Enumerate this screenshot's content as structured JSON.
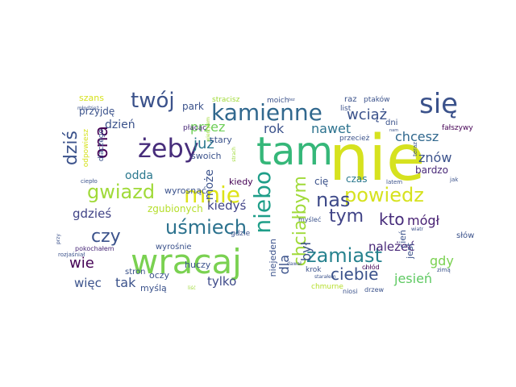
{
  "words": [
    {
      "text": "nie",
      "color": "#d6e21f"
    },
    {
      "text": "tam",
      "color": "#35b779"
    },
    {
      "text": "wracaj",
      "color": "#7ad151"
    },
    {
      "text": "się",
      "color": "#3b528b"
    },
    {
      "text": "żeby",
      "color": "#472d7b"
    },
    {
      "text": "kamienne",
      "color": "#31688e"
    },
    {
      "text": "twój",
      "color": "#3b528b"
    },
    {
      "text": "gwiazd",
      "color": "#a0da39"
    },
    {
      "text": "mnie",
      "color": "#dde318"
    },
    {
      "text": "niebo",
      "color": "#1f9e89"
    },
    {
      "text": "powiedz",
      "color": "#d6e21f"
    },
    {
      "text": "nas",
      "color": "#3e4a89"
    },
    {
      "text": "uśmiech",
      "color": "#2c728e"
    },
    {
      "text": "czy",
      "color": "#3b528b"
    },
    {
      "text": "zamiast",
      "color": "#26828e"
    },
    {
      "text": "ona",
      "color": "#440154"
    },
    {
      "text": "dziś",
      "color": "#3b528b"
    },
    {
      "text": "tym",
      "color": "#414487"
    },
    {
      "text": "kto",
      "color": "#472d7b"
    },
    {
      "text": "chciałbym",
      "color": "#a0da39"
    },
    {
      "text": "ciebie",
      "color": "#3b528b"
    },
    {
      "text": "już",
      "color": "#2a788e"
    },
    {
      "text": "przez",
      "color": "#6ece58"
    },
    {
      "text": "wie",
      "color": "#440154"
    },
    {
      "text": "mógł",
      "color": "#482173"
    },
    {
      "text": "gdy",
      "color": "#7ad151"
    },
    {
      "text": "jesień",
      "color": "#5ec962"
    },
    {
      "text": "dla",
      "color": "#3b528b"
    },
    {
      "text": "był",
      "color": "#3b528b"
    },
    {
      "text": "wciąż",
      "color": "#3b528b"
    },
    {
      "text": "nawet",
      "color": "#2c728e"
    },
    {
      "text": "rok",
      "color": "#3b528b"
    },
    {
      "text": "znów",
      "color": "#3b528b"
    },
    {
      "text": "gdzieś",
      "color": "#414487"
    },
    {
      "text": "chcesz",
      "color": "#31688e"
    },
    {
      "text": "tak",
      "color": "#3b528b"
    },
    {
      "text": "więc",
      "color": "#3b528b"
    },
    {
      "text": "należeć",
      "color": "#482878"
    },
    {
      "text": "kiedyś",
      "color": "#414487"
    },
    {
      "text": "tylko",
      "color": "#3e4a89"
    },
    {
      "text": "dzień",
      "color": "#3b528b"
    },
    {
      "text": "odda",
      "color": "#2a788e"
    },
    {
      "text": "może",
      "color": "#3b528b"
    },
    {
      "text": "przyjdę",
      "color": "#3b528b"
    },
    {
      "text": "park",
      "color": "#3b528b"
    },
    {
      "text": "zgubionych",
      "color": "#b5de2b"
    },
    {
      "text": "wyrosnąć",
      "color": "#3b528b"
    },
    {
      "text": "stary",
      "color": "#3b528b"
    },
    {
      "text": "swoich",
      "color": "#3b528b"
    },
    {
      "text": "kiedy",
      "color": "#440154"
    },
    {
      "text": "bardzo",
      "color": "#482878"
    },
    {
      "text": "czas",
      "color": "#2a788e"
    },
    {
      "text": "cię",
      "color": "#3b528b"
    },
    {
      "text": "cień",
      "color": "#3b528b"
    },
    {
      "text": "jest",
      "color": "#3b528b"
    },
    {
      "text": "niejeden",
      "color": "#3b528b"
    },
    {
      "text": "oczy",
      "color": "#3b528b"
    },
    {
      "text": "myślą",
      "color": "#3b528b"
    },
    {
      "text": "huczy",
      "color": "#3b528b"
    },
    {
      "text": "wyrośnie",
      "color": "#3b528b"
    },
    {
      "text": "stron",
      "color": "#3b528b"
    },
    {
      "text": "szans",
      "color": "#d6e21f"
    },
    {
      "text": "stracisz",
      "color": "#a0da39"
    },
    {
      "text": "moich",
      "color": "#3b528b"
    },
    {
      "text": "raz",
      "color": "#3b528b"
    },
    {
      "text": "list",
      "color": "#3b528b"
    },
    {
      "text": "ptaków",
      "color": "#3b528b"
    },
    {
      "text": "dni",
      "color": "#3b528b"
    },
    {
      "text": "fałszywy",
      "color": "#440154"
    },
    {
      "text": "płacąc",
      "color": "#482878"
    },
    {
      "text": "przecież",
      "color": "#3b528b"
    },
    {
      "text": "słów",
      "color": "#3b528b"
    },
    {
      "text": "krok",
      "color": "#3b528b"
    },
    {
      "text": "gdzie",
      "color": "#3b528b"
    },
    {
      "text": "chmurne",
      "color": "#b5de2b"
    },
    {
      "text": "niosi",
      "color": "#3b528b"
    },
    {
      "text": "drzew",
      "color": "#3b528b"
    },
    {
      "text": "chłód",
      "color": "#440154"
    },
    {
      "text": "myśleć",
      "color": "#3b528b"
    },
    {
      "text": "jak",
      "color": "#3b528b"
    },
    {
      "text": "latem",
      "color": "#3b528b"
    },
    {
      "text": "ciepło",
      "color": "#3b528b"
    },
    {
      "text": "pokochałem",
      "color": "#482878"
    },
    {
      "text": "rozjaśniał",
      "color": "#3b528b"
    },
    {
      "text": "teraz",
      "color": "#3b528b"
    },
    {
      "text": "zimą",
      "color": "#3b528b"
    },
    {
      "text": "wiatr",
      "color": "#3b528b"
    },
    {
      "text": "starałem",
      "color": "#3b528b"
    },
    {
      "text": "dawał",
      "color": "#3b528b"
    },
    {
      "text": "przy",
      "color": "#3b528b"
    },
    {
      "text": "młodzież",
      "color": "#3b528b"
    },
    {
      "text": "liść",
      "color": "#a0da39"
    },
    {
      "text": "strach",
      "color": "#a0da39"
    },
    {
      "text": "wierzyłem",
      "color": "#a0da39"
    },
    {
      "text": "nam",
      "color": "#3b528b"
    },
    {
      "text": "dlaczego",
      "color": "#3b528b"
    },
    {
      "text": "odpowiesz",
      "color": "#d6e21f"
    },
    {
      "text": "tez",
      "color": "#3b528b"
    }
  ]
}
